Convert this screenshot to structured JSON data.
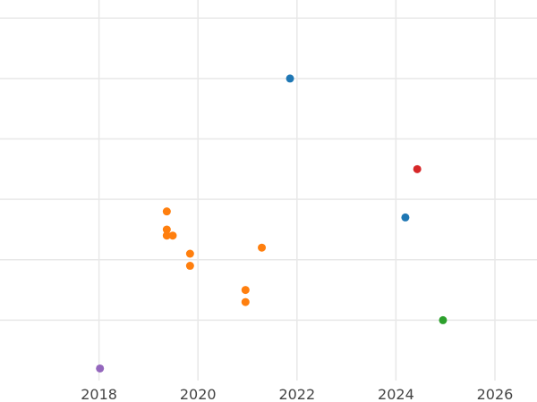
{
  "chart_data": {
    "type": "scatter",
    "title": "",
    "xlabel": "",
    "ylabel": "",
    "xlim": [
      2016.0,
      2026.85
    ],
    "ylim": [
      0.0,
      6.3
    ],
    "x_ticks": [
      2018,
      2020,
      2022,
      2024,
      2026
    ],
    "x_tick_labels": [
      "2018",
      "2020",
      "2022",
      "2024",
      "2026"
    ],
    "y_gridlines": [
      1,
      2,
      3,
      4,
      5,
      6
    ],
    "y_tick_labels_shown": false,
    "grid": true,
    "legend": false,
    "points": [
      {
        "x": 2018.02,
        "y": 0.2,
        "color": "#9467bd"
      },
      {
        "x": 2019.37,
        "y": 2.8,
        "color": "#ff7f0e"
      },
      {
        "x": 2019.37,
        "y": 2.5,
        "color": "#ff7f0e"
      },
      {
        "x": 2019.37,
        "y": 2.4,
        "color": "#ff7f0e"
      },
      {
        "x": 2019.49,
        "y": 2.4,
        "color": "#ff7f0e"
      },
      {
        "x": 2019.84,
        "y": 2.1,
        "color": "#ff7f0e"
      },
      {
        "x": 2019.84,
        "y": 1.9,
        "color": "#ff7f0e"
      },
      {
        "x": 2020.96,
        "y": 1.5,
        "color": "#ff7f0e"
      },
      {
        "x": 2020.96,
        "y": 1.3,
        "color": "#ff7f0e"
      },
      {
        "x": 2021.29,
        "y": 2.2,
        "color": "#ff7f0e"
      },
      {
        "x": 2021.86,
        "y": 5.0,
        "color": "#1f77b4"
      },
      {
        "x": 2024.19,
        "y": 2.7,
        "color": "#1f77b4"
      },
      {
        "x": 2024.43,
        "y": 3.5,
        "color": "#d62728"
      },
      {
        "x": 2024.95,
        "y": 1.0,
        "color": "#2ca02c"
      }
    ],
    "colors": {
      "grid": "#e8e8e8",
      "tick_text": "#444444"
    }
  }
}
